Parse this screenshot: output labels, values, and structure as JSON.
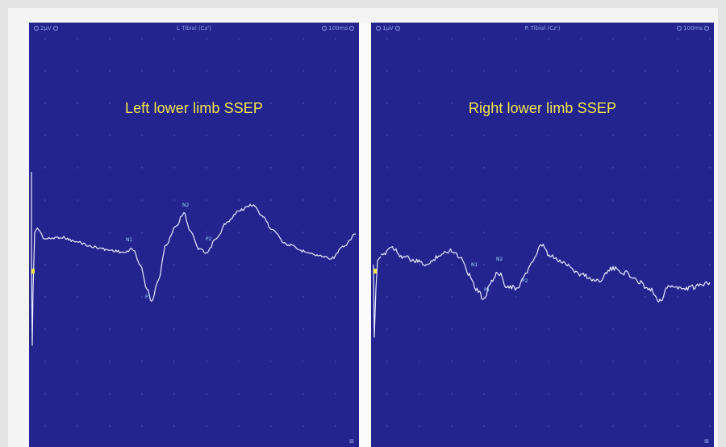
{
  "panels": [
    {
      "title": "Left lower limb SSEP",
      "gain": "2μV",
      "timebase": "100ms",
      "channel": "L Tibial (Cz')",
      "peaks": [
        "N1",
        "P1",
        "N2",
        "P2"
      ]
    },
    {
      "title": "Right lower limb SSEP",
      "gain": "1μV",
      "timebase": "100ms",
      "channel": "R Tibial (Cz')",
      "peaks": [
        "N1",
        "P1",
        "N2",
        "P2"
      ]
    }
  ],
  "colors": {
    "screen": "#24248e",
    "grid": "#4f5fb8",
    "trace": "#e8ecff",
    "title": "#f2e84a",
    "peak_label": "#9fd8ff"
  }
}
